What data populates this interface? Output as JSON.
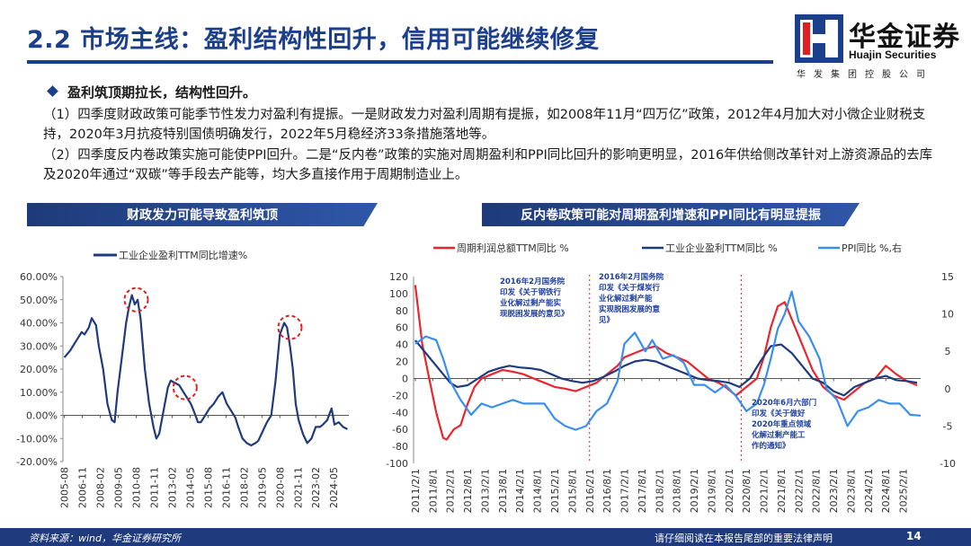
{
  "header": {
    "title": "2.2 市场主线：盈利结构性回升，信用可能继续修复",
    "logo_cn": "华金证券",
    "logo_en": "Huajin Securities",
    "logo_sub": "华发集团控股公司"
  },
  "content": {
    "bullet": "盈利筑顶期拉长，结构性回升。",
    "para1": "（1）四季度财政政策可能季节性发力对盈利有提振。一是财政发力对盈利周期有提振，如2008年11月“四万亿”政策，2012年4月加大对小微企业财税支持，2020年3月抗疫特别国债明确发行，2022年5月稳经济33条措施落地等。",
    "para2": "（2）四季度反内卷政策实施可能使PPI回升。二是“反内卷”政策的实施对周期盈利和PPI同比回升的影响更明显，2016年供给侧改革针对上游资源品的去库及2020年通过“双碳”等手段去产能等，均大多直接作用于周期制造业上。"
  },
  "left_chart": {
    "title": "财政发力可能导致盈利筑顶",
    "legend": "工业企业盈利TTM同比增速%",
    "line_color": "#1f3b7d",
    "circle_color": "#e02020"
  },
  "right_chart": {
    "title": "反内卷政策可能对周期盈利增速和PPI同比有明显提振",
    "legend": [
      "周期利润总额TTM同比 %",
      "工业企业盈利TTM同比 %",
      "PPI同比 %,右"
    ],
    "colors": [
      "#e8262d",
      "#1f3b7d",
      "#3a8ef0"
    ],
    "annotation1": [
      "2016年2月国务院",
      "印发《关于钢铁行",
      "业化解过剩产能实",
      "现脱困发展的意见》"
    ],
    "annotation2": [
      "2016年2月国务院",
      "印发《关于煤炭行",
      "业化解过剩产能",
      "实现脱困发展的意",
      "见》"
    ],
    "annotation3": [
      "2020年6月六部门",
      "印发《关于做好",
      "2020年重点领域",
      "化解过剩产能工",
      "作的通知》"
    ],
    "annotation_color": "#1f3fa0"
  },
  "chart_data": [
    {
      "type": "line",
      "title": "财政发力可能导致盈利筑顶",
      "ylim": [
        -20,
        60
      ],
      "ytick_labels": [
        "60.00%",
        "50.00%",
        "40.00%",
        "30.00%",
        "20.00%",
        "10.00%",
        "0.00%",
        "-10.00%",
        "-20.00%"
      ],
      "xtick_labels": [
        "2005-08",
        "2006-11",
        "2008-02",
        "2009-05",
        "2010-08",
        "2011-11",
        "2013-02",
        "2014-05",
        "2015-08",
        "2016-11",
        "2018-02",
        "2019-05",
        "2020-08",
        "2021-11",
        "2023-02",
        "2024-05"
      ],
      "series": [
        {
          "name": "工业企业盈利TTM同比增速%",
          "x": [
            2005.6,
            2006.0,
            2006.4,
            2006.8,
            2007.0,
            2007.3,
            2007.5,
            2007.8,
            2008.0,
            2008.3,
            2008.6,
            2008.9,
            2009.1,
            2009.3,
            2009.6,
            2009.9,
            2010.1,
            2010.3,
            2010.5,
            2010.7,
            2010.9,
            2011.2,
            2011.5,
            2011.8,
            2012.0,
            2012.2,
            2012.5,
            2012.8,
            2013.0,
            2013.3,
            2013.6,
            2013.9,
            2014.1,
            2014.4,
            2014.6,
            2014.9,
            2015.1,
            2015.4,
            2015.7,
            2016.0,
            2016.3,
            2016.6,
            2016.9,
            2017.2,
            2017.5,
            2017.7,
            2018.0,
            2018.3,
            2018.6,
            2018.9,
            2019.1,
            2019.4,
            2019.7,
            2020.0,
            2020.3,
            2020.6,
            2020.9,
            2021.1,
            2021.3,
            2021.5,
            2021.7,
            2021.9,
            2022.2,
            2022.5,
            2022.8,
            2023.1,
            2023.4,
            2023.6,
            2023.9,
            2024.2,
            2024.4,
            2024.7,
            2025.0,
            2025.3
          ],
          "y": [
            25,
            28,
            32,
            36,
            35,
            38,
            42,
            39,
            30,
            20,
            5,
            -2,
            -3,
            10,
            25,
            40,
            47,
            52,
            48,
            50,
            42,
            20,
            5,
            -5,
            -10,
            -8,
            2,
            12,
            15,
            14,
            13,
            10,
            8,
            5,
            2,
            -3,
            -3,
            0,
            3,
            5,
            8,
            10,
            5,
            2,
            -1,
            -5,
            -10,
            -12,
            -13,
            -12,
            -11,
            -7,
            -3,
            0,
            15,
            35,
            40,
            38,
            30,
            20,
            5,
            -2,
            -8,
            -12,
            -10,
            -5,
            -5,
            -4,
            -2,
            3,
            -4,
            -3,
            -5,
            -6
          ]
        }
      ],
      "highlights": [
        {
          "x": 2010.6,
          "y": 50
        },
        {
          "x": 2014.0,
          "y": 12
        },
        {
          "x": 2021.3,
          "y": 38
        }
      ]
    },
    {
      "type": "line",
      "title": "反内卷政策可能对周期盈利增速和PPI同比有明显提振",
      "ylim_left": [
        -100,
        120
      ],
      "ylim_right": [
        -10,
        15
      ],
      "yticks_left": [
        120,
        100,
        80,
        60,
        40,
        20,
        0,
        -20,
        -40,
        -60,
        -80,
        -100
      ],
      "yticks_right": [
        15,
        10,
        5,
        0,
        -5,
        -10
      ],
      "xtick_labels": [
        "2011/2/1",
        "2011/8/1",
        "2012/2/1",
        "2012/8/1",
        "2013/2/1",
        "2013/8/1",
        "2014/2/1",
        "2014/8/1",
        "2015/2/1",
        "2015/8/1",
        "2016/2/1",
        "2016/8/1",
        "2017/2/1",
        "2017/8/1",
        "2018/2/1",
        "2018/8/1",
        "2019/2/1",
        "2019/8/1",
        "2020/2/1",
        "2020/8/1",
        "2021/2/1",
        "2021/8/1",
        "2022/2/1",
        "2022/8/1",
        "2023/2/1",
        "2023/8/1",
        "2024/2/1",
        "2024/8/1",
        "2025/2/1"
      ],
      "policy_markers": [
        "2016/2/1",
        "2020/6/1"
      ],
      "series": [
        {
          "name": "周期利润总额TTM同比 %",
          "axis": "left",
          "x": [
            2011.1,
            2011.3,
            2011.5,
            2011.7,
            2011.9,
            2012.0,
            2012.2,
            2012.4,
            2012.6,
            2012.8,
            2013.0,
            2013.3,
            2013.6,
            2013.9,
            2014.2,
            2014.5,
            2014.8,
            2015.1,
            2015.4,
            2015.7,
            2016.0,
            2016.3,
            2016.6,
            2016.9,
            2017.1,
            2017.4,
            2017.7,
            2018.0,
            2018.3,
            2018.6,
            2018.9,
            2019.2,
            2019.5,
            2019.8,
            2020.0,
            2020.3,
            2020.6,
            2020.9,
            2021.1,
            2021.3,
            2021.5,
            2021.7,
            2021.9,
            2022.2,
            2022.5,
            2022.8,
            2023.1,
            2023.4,
            2023.7,
            2024.0,
            2024.3,
            2024.6,
            2024.9,
            2025.2,
            2025.5
          ],
          "y": [
            110,
            40,
            0,
            -40,
            -70,
            -72,
            -60,
            -55,
            -30,
            -10,
            0,
            5,
            10,
            8,
            5,
            0,
            -5,
            -10,
            -12,
            -15,
            -10,
            -5,
            5,
            15,
            25,
            30,
            35,
            38,
            30,
            25,
            20,
            10,
            0,
            -5,
            -10,
            -20,
            -10,
            0,
            25,
            60,
            85,
            90,
            70,
            40,
            10,
            -10,
            -20,
            -25,
            -15,
            -5,
            0,
            15,
            5,
            -3,
            -8
          ]
        },
        {
          "name": "工业企业盈利TTM同比 %",
          "axis": "left",
          "x": [
            2011.1,
            2011.3,
            2011.5,
            2011.7,
            2011.9,
            2012.1,
            2012.3,
            2012.6,
            2012.9,
            2013.2,
            2013.5,
            2013.8,
            2014.1,
            2014.4,
            2014.7,
            2015.0,
            2015.3,
            2015.6,
            2015.9,
            2016.2,
            2016.5,
            2016.8,
            2017.1,
            2017.4,
            2017.7,
            2018.0,
            2018.3,
            2018.6,
            2018.9,
            2019.2,
            2019.5,
            2019.8,
            2020.1,
            2020.4,
            2020.7,
            2021.0,
            2021.3,
            2021.6,
            2021.9,
            2022.2,
            2022.5,
            2022.8,
            2023.1,
            2023.4,
            2023.7,
            2024.0,
            2024.3,
            2024.6,
            2024.9,
            2025.2,
            2025.5
          ],
          "y": [
            45,
            35,
            25,
            15,
            5,
            -5,
            -10,
            -8,
            0,
            8,
            12,
            15,
            13,
            12,
            10,
            5,
            0,
            -3,
            -5,
            -3,
            2,
            8,
            15,
            20,
            22,
            20,
            15,
            10,
            5,
            0,
            -2,
            -3,
            -5,
            -10,
            0,
            20,
            38,
            40,
            30,
            15,
            0,
            -5,
            -15,
            -20,
            -10,
            -5,
            0,
            3,
            -2,
            -3,
            -5
          ]
        },
        {
          "name": "PPI同比 %,右",
          "axis": "right",
          "x": [
            2011.1,
            2011.4,
            2011.7,
            2011.9,
            2012.1,
            2012.4,
            2012.7,
            2013.0,
            2013.3,
            2013.6,
            2013.9,
            2014.2,
            2014.5,
            2014.8,
            2015.1,
            2015.4,
            2015.7,
            2016.0,
            2016.3,
            2016.6,
            2016.9,
            2017.1,
            2017.4,
            2017.7,
            2017.9,
            2018.2,
            2018.5,
            2018.8,
            2019.1,
            2019.4,
            2019.7,
            2020.0,
            2020.3,
            2020.6,
            2020.9,
            2021.1,
            2021.3,
            2021.5,
            2021.7,
            2021.9,
            2022.1,
            2022.4,
            2022.7,
            2022.9,
            2023.2,
            2023.5,
            2023.8,
            2024.1,
            2024.4,
            2024.7,
            2025.0,
            2025.3,
            2025.6
          ],
          "y": [
            6,
            7,
            6.5,
            4,
            1,
            -1.5,
            -3.5,
            -2,
            -2.5,
            -2,
            -1.5,
            -2,
            -2,
            -2,
            -4,
            -5,
            -5.5,
            -5,
            -3,
            -2,
            1,
            6,
            7.5,
            5,
            6.5,
            4,
            4.5,
            3.5,
            0.5,
            0.5,
            -0.5,
            0.5,
            -1,
            -3,
            -2,
            0.5,
            4,
            8,
            10,
            13,
            9,
            7,
            4,
            0,
            -1.5,
            -5,
            -3,
            -2.5,
            -1.5,
            -2,
            -2,
            -3.5,
            -3.6
          ]
        }
      ]
    }
  ],
  "footer": {
    "source": "资料来源：wind，华金证券研究所",
    "disclaimer": "请仔细阅读在本报告尾部的重要法律声明",
    "page_number": "14"
  }
}
